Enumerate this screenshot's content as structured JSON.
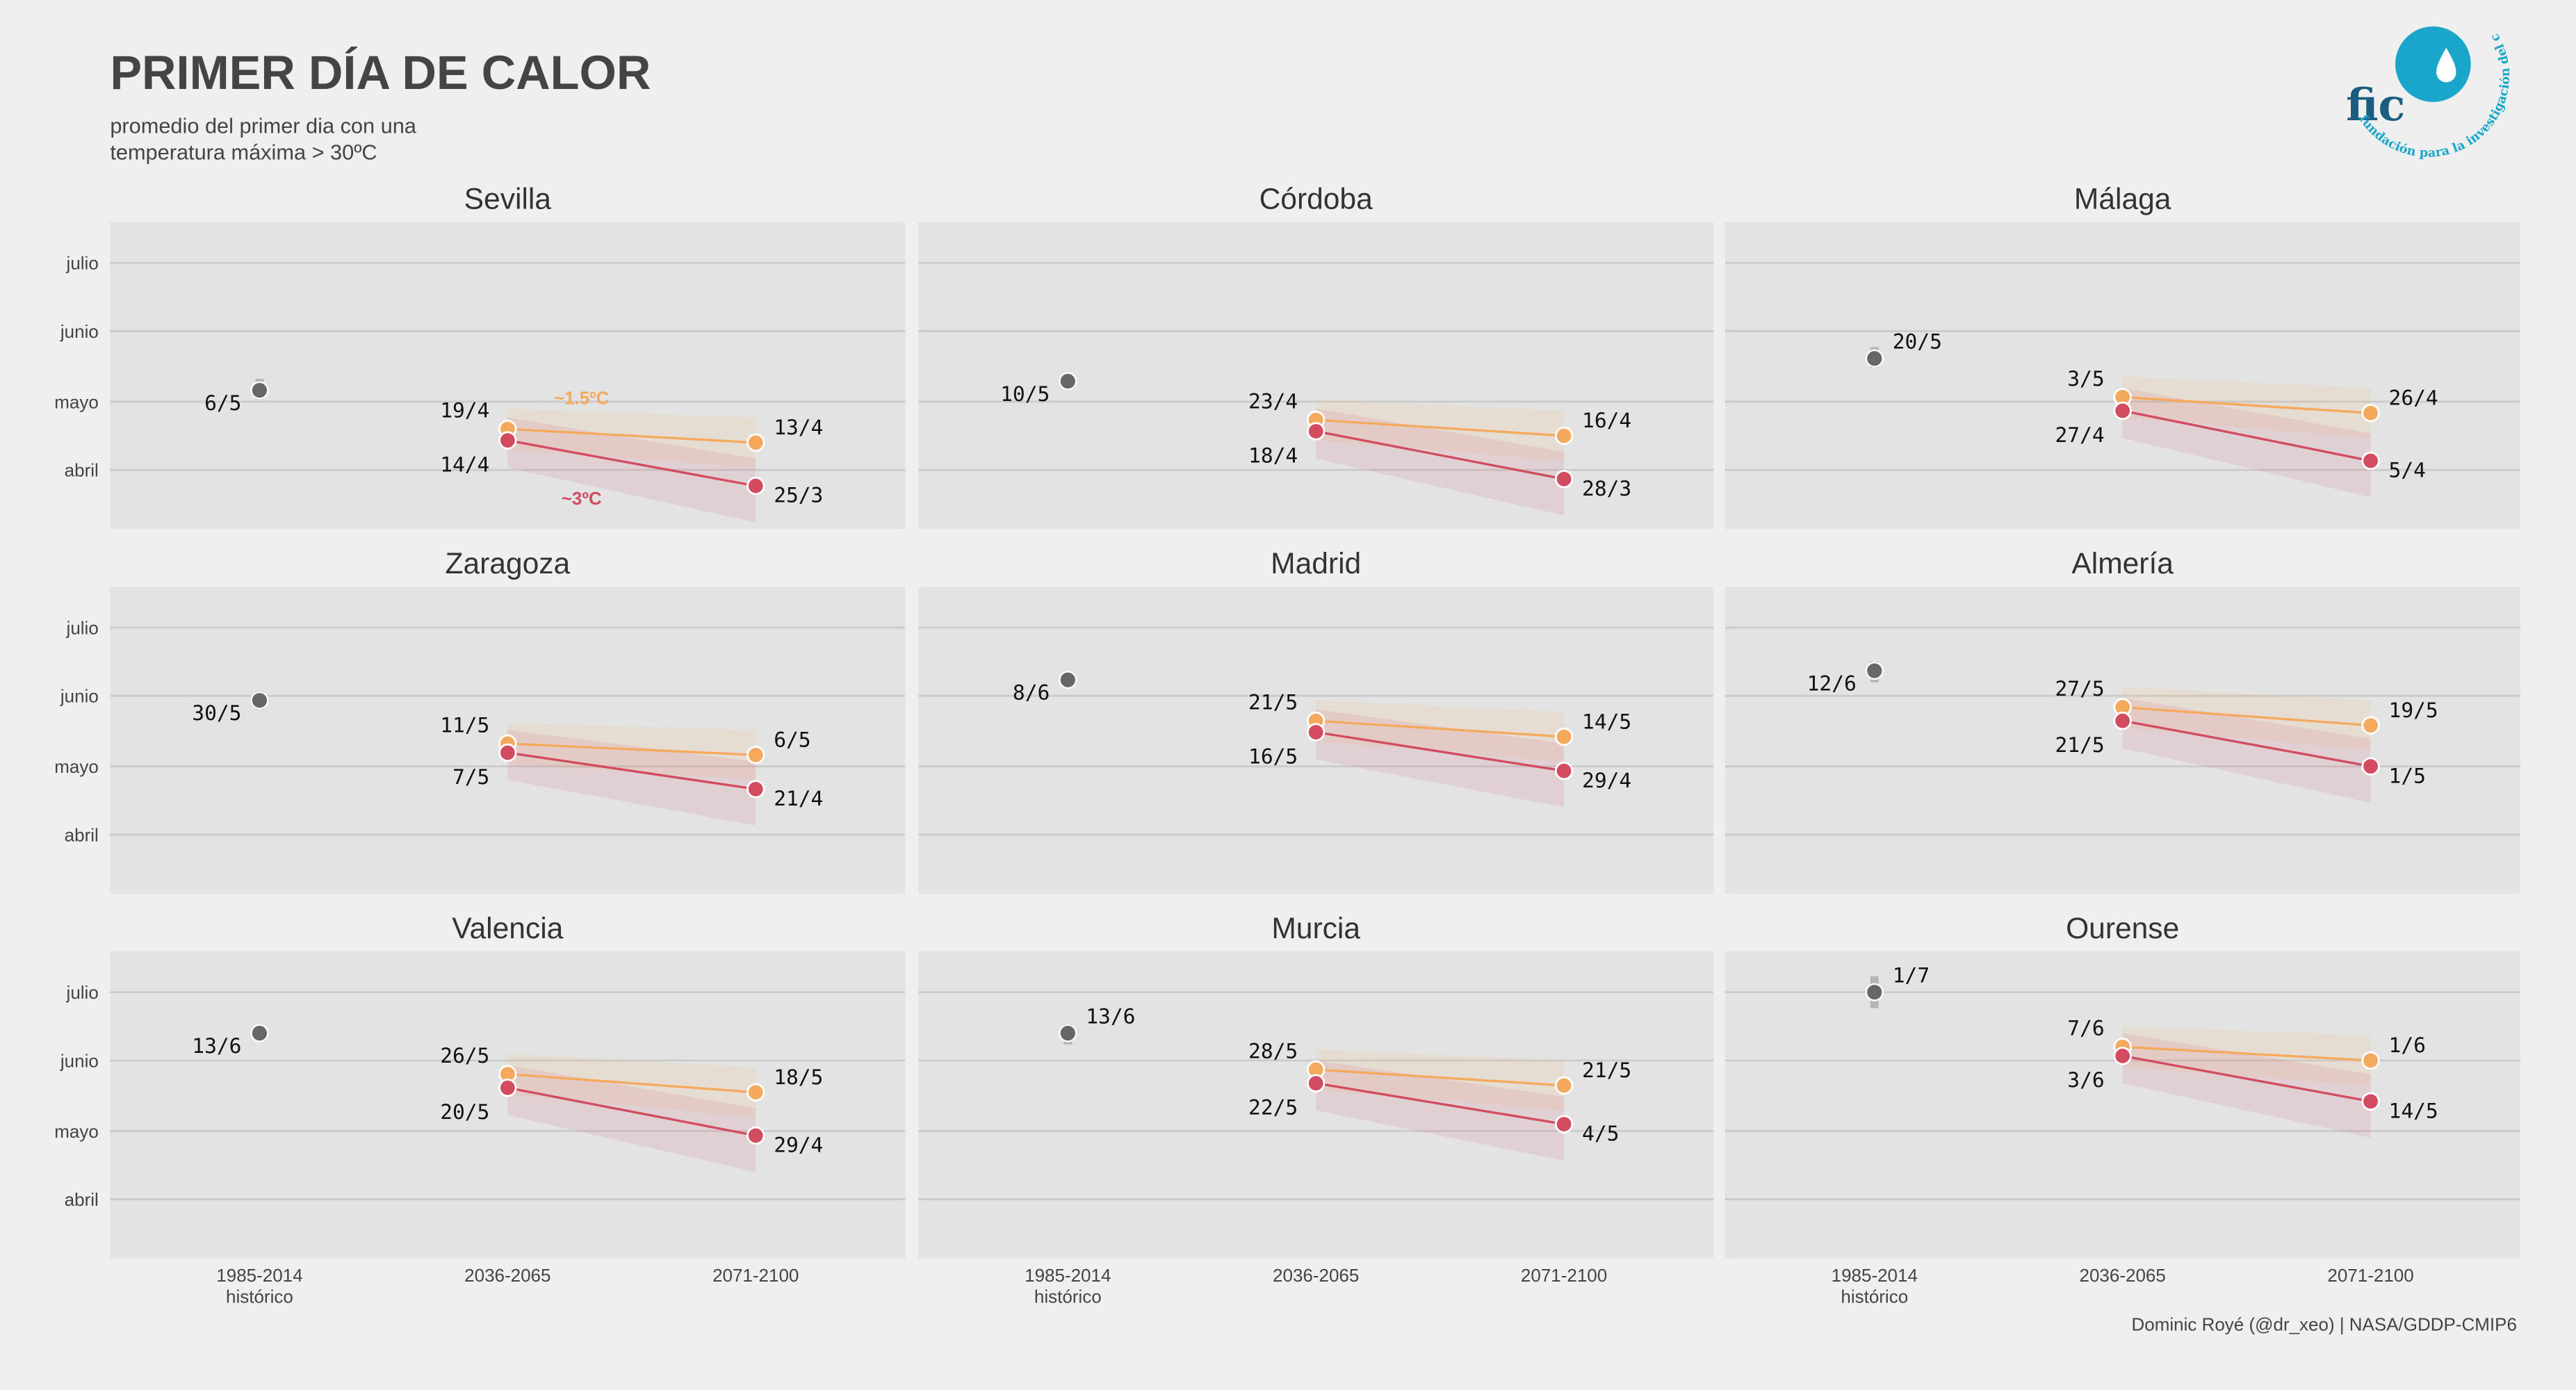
{
  "title": "PRIMER DÍA DE CALOR",
  "subtitle": [
    "promedio del primer dia con una",
    "temperatura máxima > 30ºC"
  ],
  "logo": {
    "text": "fic",
    "ring": "fundación para la investigación del clima"
  },
  "caption": "Dominic Royé (@dr_xeo) | NASA/GDDP-CMIP6",
  "chart_data": {
    "type": "line",
    "categories": [
      "1985-2014",
      "2036-2065",
      "2071-2100"
    ],
    "category_note": "histórico",
    "ylim": [
      65,
      200
    ],
    "yticks": [
      {
        "value": 91,
        "label": "abril"
      },
      {
        "value": 121,
        "label": "mayo"
      },
      {
        "value": 152,
        "label": "junio"
      },
      {
        "value": 182,
        "label": "julio"
      }
    ],
    "grid": true,
    "historical_color": "#676767",
    "series": [
      {
        "name": "~1.5ºC",
        "color": "#f4a95c"
      },
      {
        "name": "~3ºC",
        "color": "#d24b5f"
      }
    ],
    "panels": [
      {
        "title": "Sevilla",
        "historical": {
          "value": 126,
          "label": "6/5",
          "range": [
            122,
            131
          ]
        },
        "series": [
          {
            "values": [
              null,
              109,
              103
            ],
            "value_labels": [
              null,
              "19/4",
              "13/4"
            ],
            "lower": [
              null,
              100,
              92
            ],
            "upper": [
              null,
              118,
              114
            ]
          },
          {
            "values": [
              null,
              104,
              84
            ],
            "value_labels": [
              null,
              "14/4",
              "25/3"
            ],
            "lower": [
              null,
              92,
              68
            ],
            "upper": [
              null,
              114,
              96
            ]
          }
        ]
      },
      {
        "title": "Córdoba",
        "historical": {
          "value": 130,
          "label": "10/5",
          "range": [
            128,
            132
          ]
        },
        "series": [
          {
            "values": [
              null,
              113,
              106
            ],
            "value_labels": [
              null,
              "23/4",
              "16/4"
            ],
            "lower": [
              null,
              104,
              95
            ],
            "upper": [
              null,
              122,
              117
            ]
          },
          {
            "values": [
              null,
              108,
              87
            ],
            "value_labels": [
              null,
              "18/4",
              "28/3"
            ],
            "lower": [
              null,
              96,
              71
            ],
            "upper": [
              null,
              118,
              99
            ]
          }
        ]
      },
      {
        "title": "Málaga",
        "historical": {
          "value": 140,
          "label": "20/5",
          "range": [
            136,
            145
          ]
        },
        "series": [
          {
            "values": [
              null,
              123,
              116
            ],
            "value_labels": [
              null,
              "3/5",
              "26/4"
            ],
            "lower": [
              null,
              114,
              105
            ],
            "upper": [
              null,
              132,
              127
            ]
          },
          {
            "values": [
              null,
              117,
              95
            ],
            "value_labels": [
              null,
              "27/4",
              "5/4"
            ],
            "lower": [
              null,
              105,
              79
            ],
            "upper": [
              null,
              127,
              107
            ]
          }
        ]
      },
      {
        "title": "Zaragoza",
        "historical": {
          "value": 150,
          "label": "30/5",
          "range": [
            146,
            154
          ]
        },
        "series": [
          {
            "values": [
              null,
              131,
              126
            ],
            "value_labels": [
              null,
              "11/5",
              "6/5"
            ],
            "lower": [
              null,
              122,
              115
            ],
            "upper": [
              null,
              140,
              137
            ]
          },
          {
            "values": [
              null,
              127,
              111
            ],
            "value_labels": [
              null,
              "7/5",
              "21/4"
            ],
            "lower": [
              null,
              115,
              95
            ],
            "upper": [
              null,
              137,
              123
            ]
          }
        ]
      },
      {
        "title": "Madrid",
        "historical": {
          "value": 159,
          "label": "8/6",
          "range": [
            157,
            161
          ]
        },
        "series": [
          {
            "values": [
              null,
              141,
              134
            ],
            "value_labels": [
              null,
              "21/5",
              "14/5"
            ],
            "lower": [
              null,
              132,
              123
            ],
            "upper": [
              null,
              150,
              145
            ]
          },
          {
            "values": [
              null,
              136,
              119
            ],
            "value_labels": [
              null,
              "16/5",
              "29/4"
            ],
            "lower": [
              null,
              124,
              103
            ],
            "upper": [
              null,
              146,
              131
            ]
          }
        ]
      },
      {
        "title": "Almería",
        "historical": {
          "value": 163,
          "label": "12/6",
          "range": [
            158,
            167
          ]
        },
        "series": [
          {
            "values": [
              null,
              147,
              139
            ],
            "value_labels": [
              null,
              "27/5",
              "19/5"
            ],
            "lower": [
              null,
              138,
              128
            ],
            "upper": [
              null,
              156,
              150
            ]
          },
          {
            "values": [
              null,
              141,
              121
            ],
            "value_labels": [
              null,
              "21/5",
              "1/5"
            ],
            "lower": [
              null,
              129,
              105
            ],
            "upper": [
              null,
              151,
              133
            ]
          }
        ]
      },
      {
        "title": "Valencia",
        "historical": {
          "value": 164,
          "label": "13/6",
          "range": [
            161,
            167
          ]
        },
        "series": [
          {
            "values": [
              null,
              146,
              138
            ],
            "value_labels": [
              null,
              "26/5",
              "18/5"
            ],
            "lower": [
              null,
              137,
              127
            ],
            "upper": [
              null,
              155,
              149
            ]
          },
          {
            "values": [
              null,
              140,
              119
            ],
            "value_labels": [
              null,
              "20/5",
              "29/4"
            ],
            "lower": [
              null,
              128,
              103
            ],
            "upper": [
              null,
              150,
              131
            ]
          }
        ]
      },
      {
        "title": "Murcia",
        "historical": {
          "value": 164,
          "label": "13/6",
          "range": [
            159,
            168
          ]
        },
        "series": [
          {
            "values": [
              null,
              148,
              141
            ],
            "value_labels": [
              null,
              "28/5",
              "21/5"
            ],
            "lower": [
              null,
              139,
              130
            ],
            "upper": [
              null,
              157,
              152
            ]
          },
          {
            "values": [
              null,
              142,
              124
            ],
            "value_labels": [
              null,
              "22/5",
              "4/5"
            ],
            "lower": [
              null,
              130,
              108
            ],
            "upper": [
              null,
              152,
              136
            ]
          }
        ]
      },
      {
        "title": "Ourense",
        "historical": {
          "value": 182,
          "label": "1/7",
          "range": [
            175,
            189
          ]
        },
        "series": [
          {
            "values": [
              null,
              158,
              152
            ],
            "value_labels": [
              null,
              "7/6",
              "1/6"
            ],
            "lower": [
              null,
              149,
              141
            ],
            "upper": [
              null,
              167,
              163
            ]
          },
          {
            "values": [
              null,
              154,
              134
            ],
            "value_labels": [
              null,
              "3/6",
              "14/5"
            ],
            "lower": [
              null,
              142,
              118
            ],
            "upper": [
              null,
              164,
              146
            ]
          }
        ]
      }
    ]
  }
}
